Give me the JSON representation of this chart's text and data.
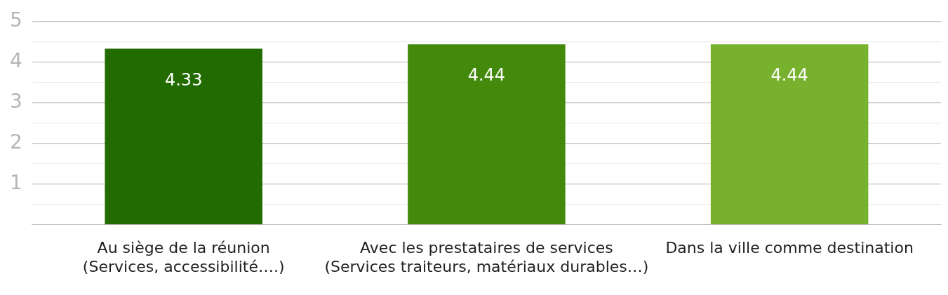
{
  "chart_data": {
    "type": "bar",
    "categories": [
      [
        "Au siège de la réunion",
        "(Services, accessibilité….)"
      ],
      [
        "Avec les prestataires de services",
        "(Services traiteurs, matériaux durables…)"
      ],
      [
        "Dans la ville comme destination"
      ]
    ],
    "values": [
      4.33,
      4.44,
      4.44
    ],
    "colors": [
      "#226b00",
      "#43890c",
      "#78b12e"
    ],
    "ylim": [
      0,
      5
    ],
    "yticks": [
      {
        "value": 0.5,
        "label": null
      },
      1,
      {
        "value": 1.5,
        "label": null
      },
      2,
      {
        "value": 2.5,
        "label": null
      },
      3,
      {
        "value": 3.5,
        "label": null
      },
      4,
      {
        "value": 4.5,
        "label": null
      },
      5
    ],
    "grid": "y",
    "legend": false,
    "data_labels": true
  }
}
